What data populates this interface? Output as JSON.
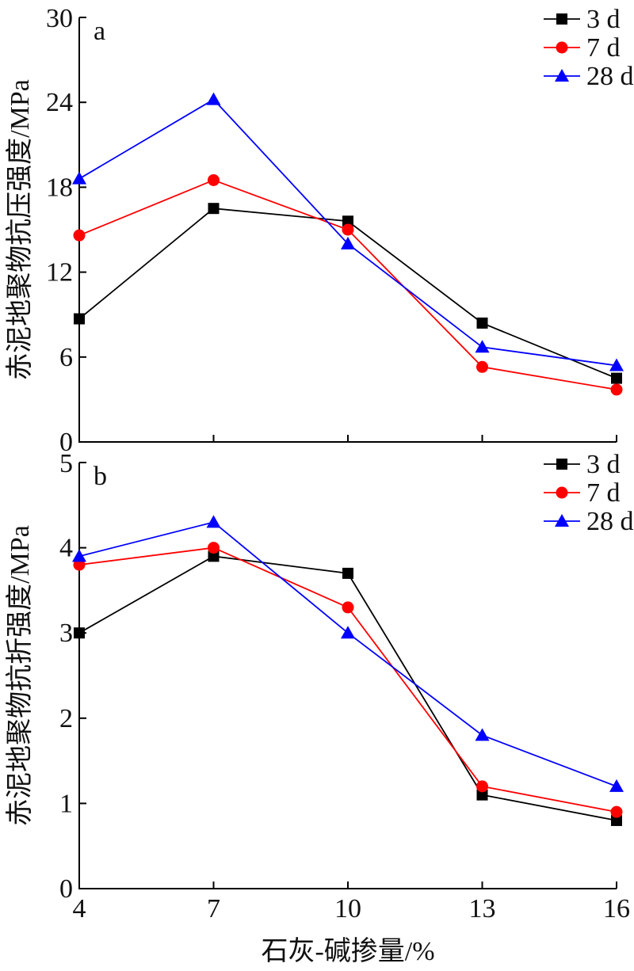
{
  "chart_data": [
    {
      "type": "line",
      "panel_label": "a",
      "ylabel": "赤泥地聚物抗压强度/MPa",
      "xlabel": "",
      "ylim": [
        0,
        30
      ],
      "yticks": [
        0,
        6,
        12,
        18,
        24,
        30
      ],
      "x": [
        4,
        7,
        10,
        13,
        16
      ],
      "series": [
        {
          "name": "3 d",
          "color": "#000000",
          "marker": "square",
          "values": [
            8.7,
            16.5,
            15.6,
            8.4,
            4.5
          ]
        },
        {
          "name": "7 d",
          "color": "#ff0000",
          "marker": "circle",
          "values": [
            14.6,
            18.5,
            15.0,
            5.3,
            3.7
          ]
        },
        {
          "name": "28 d",
          "color": "#0000ff",
          "marker": "triangle",
          "values": [
            18.6,
            24.2,
            14.0,
            6.7,
            5.4
          ]
        }
      ],
      "legend_position": "top-right"
    },
    {
      "type": "line",
      "panel_label": "b",
      "ylabel": "赤泥地聚物抗折强度/MPa",
      "xlabel": "石灰-碱掺量/%",
      "ylim": [
        0,
        5
      ],
      "yticks": [
        0,
        1,
        2,
        3,
        4,
        5
      ],
      "x": [
        4,
        7,
        10,
        13,
        16
      ],
      "xticks": [
        4,
        7,
        10,
        13,
        16
      ],
      "series": [
        {
          "name": "3 d",
          "color": "#000000",
          "marker": "square",
          "values": [
            3.0,
            3.9,
            3.7,
            1.1,
            0.8
          ]
        },
        {
          "name": "7 d",
          "color": "#ff0000",
          "marker": "circle",
          "values": [
            3.8,
            4.0,
            3.3,
            1.2,
            0.9
          ]
        },
        {
          "name": "28 d",
          "color": "#0000ff",
          "marker": "triangle",
          "values": [
            3.9,
            4.3,
            3.0,
            1.8,
            1.2
          ]
        }
      ],
      "legend_position": "top-right"
    }
  ]
}
